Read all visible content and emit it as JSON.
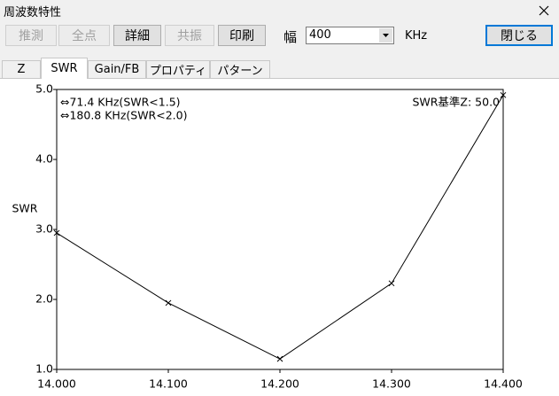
{
  "window": {
    "title": "周波数特性"
  },
  "toolbar": {
    "buttons": [
      {
        "label": "推測",
        "disabled": true
      },
      {
        "label": "全点",
        "disabled": true
      },
      {
        "label": "詳細",
        "disabled": false
      },
      {
        "label": "共振",
        "disabled": true
      },
      {
        "label": "印刷",
        "disabled": false
      }
    ],
    "width_label": "幅",
    "width_value": "400",
    "unit": "KHz",
    "close": "閉じる"
  },
  "tabs": {
    "items": [
      "Z",
      "SWR",
      "Gain/FB",
      "プロパティ",
      "パターン"
    ],
    "selected": 1
  },
  "chart_data": {
    "type": "line",
    "y_label": "SWR",
    "annotations": [
      "⇔71.4 KHz(SWR<1.5)",
      "⇔180.8 KHz(SWR<2.0)",
      "SWR基準Z: 50.0"
    ],
    "x": [
      14.0,
      14.1,
      14.2,
      14.3,
      14.4
    ],
    "series": [
      {
        "color": "#000000",
        "values": [
          2.95,
          1.95,
          1.15,
          2.23,
          4.92
        ]
      }
    ],
    "xlim": [
      14.0,
      14.4
    ],
    "xticks": [
      {
        "value": 14.0,
        "label": "14.000"
      },
      {
        "value": 14.1,
        "label": "14.100"
      },
      {
        "value": 14.2,
        "label": "14.200"
      },
      {
        "value": 14.3,
        "label": "14.300"
      },
      {
        "value": 14.4,
        "label": "14.400"
      }
    ],
    "ylim": [
      1.0,
      5.0
    ],
    "yticks": [
      {
        "value": 1.0,
        "label": "1.0"
      },
      {
        "value": 2.0,
        "label": "2.0"
      },
      {
        "value": 3.0,
        "label": "3.0"
      },
      {
        "value": 4.0,
        "label": "4.0"
      },
      {
        "value": 5.0,
        "label": "5.0"
      }
    ]
  }
}
